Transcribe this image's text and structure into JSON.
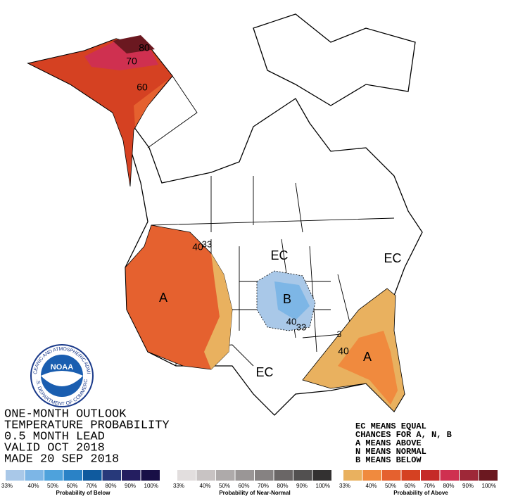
{
  "title_block": {
    "lines": [
      "ONE-MONTH OUTLOOK",
      "TEMPERATURE PROBABILITY",
      "0.5 MONTH LEAD",
      "VALID OCT 2018",
      "MADE 20 SEP 2018"
    ]
  },
  "legend_notes": {
    "lines": [
      "EC MEANS EQUAL",
      "CHANCES FOR A, N, B",
      "A MEANS ABOVE",
      "N MEANS NORMAL",
      "B MEANS BELOW"
    ]
  },
  "map_labels": [
    "80",
    "70",
    "60",
    "40",
    "33",
    "A",
    "EC",
    "B",
    "40",
    "33",
    "EC",
    "EC",
    "A",
    "40",
    "3"
  ],
  "logo": {
    "name": "NOAA",
    "ring_top": "NATIONAL OCEANIC AND ATMOSPHERIC ADMINISTRATION",
    "ring_bottom": "U.S. DEPARTMENT OF COMMERCE"
  },
  "colorbars": [
    {
      "caption": "Probability of Below",
      "ticks": [
        "33%",
        "40%",
        "50%",
        "60%",
        "70%",
        "80%",
        "90%",
        "100%"
      ],
      "colors": [
        "#a9c8e8",
        "#7db6e6",
        "#4ea2dc",
        "#2a82c6",
        "#0f5a9e",
        "#27397a",
        "#241e60",
        "#180f46"
      ]
    },
    {
      "caption": "Probability of Near-Normal",
      "ticks": [
        "33%",
        "40%",
        "50%",
        "60%",
        "70%",
        "80%",
        "90%",
        "100%"
      ],
      "colors": [
        "#e2dede",
        "#c8c3c3",
        "#aeaaaa",
        "#9a9696",
        "#868282",
        "#6a6666",
        "#525050",
        "#333131"
      ]
    },
    {
      "caption": "Probability of Above",
      "ticks": [
        "33%",
        "40%",
        "50%",
        "60%",
        "70%",
        "80%",
        "90%",
        "100%"
      ],
      "colors": [
        "#e9b15f",
        "#f08a3e",
        "#e5612f",
        "#d54122",
        "#c52a28",
        "#cf3050",
        "#9e2838",
        "#6b1820"
      ]
    }
  ]
}
